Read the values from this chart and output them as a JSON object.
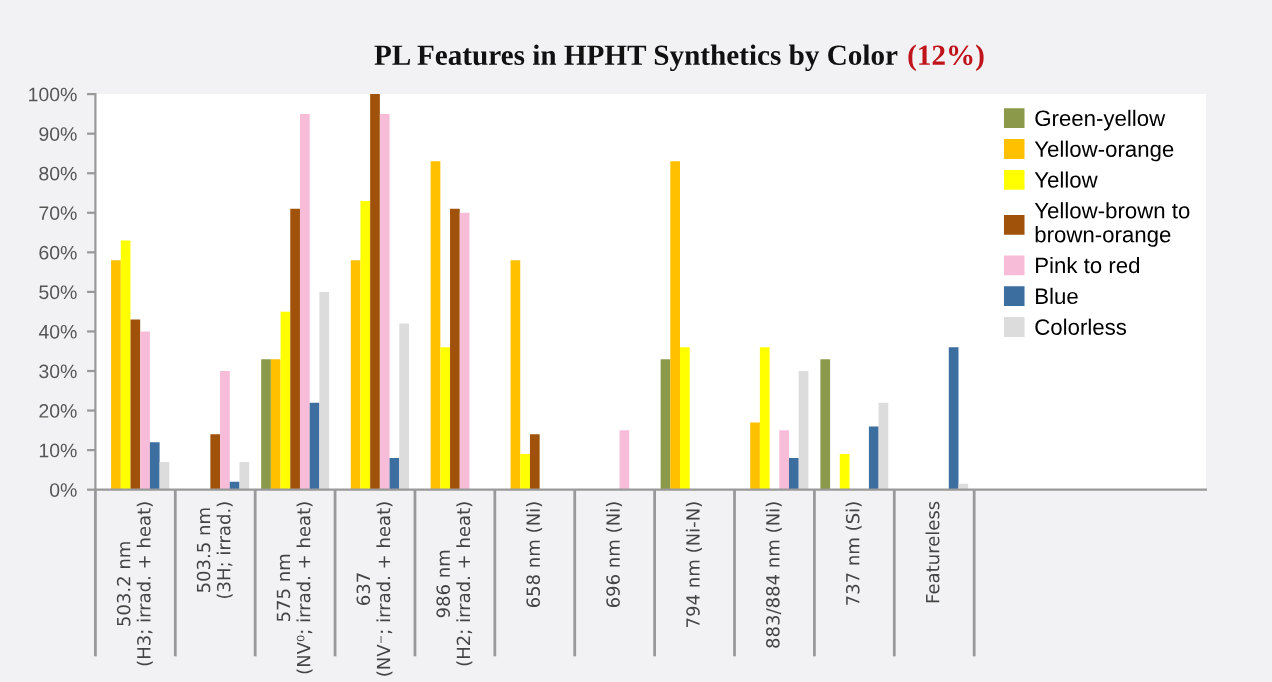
{
  "chart_data": {
    "type": "bar",
    "title": "PL Features in HPHT Synthetics by Color",
    "annotations": [
      "(12%)"
    ],
    "categories": [
      "503.2 nm\n(H3; irrad. + heat)",
      "503.5 nm\n(3H; irrad.)",
      "575 nm\n(NV⁰; irrad. + heat)",
      "637\n(NV⁻; irrad. + heat)",
      "986 nm\n(H2; irrad. + heat)",
      "658 nm (Ni)",
      "696 nm (Ni)",
      "794 nm (Ni-N)",
      "883/884 nm (Ni)",
      "737 nm (Si)",
      "Featureless"
    ],
    "series": [
      {
        "name": "Green-yellow",
        "color": "#8a9a4a",
        "values": [
          null,
          null,
          33,
          null,
          null,
          null,
          null,
          33,
          null,
          33,
          null
        ]
      },
      {
        "name": "Yellow-orange",
        "color": "#ffc000",
        "values": [
          58,
          null,
          33,
          58,
          83,
          58,
          null,
          83,
          17,
          null,
          null
        ]
      },
      {
        "name": "Yellow",
        "color": "#ffff00",
        "values": [
          63,
          null,
          45,
          73,
          36,
          9,
          null,
          36,
          36,
          9,
          null
        ]
      },
      {
        "name": "Yellow-brown to\nbrown-orange",
        "color": "#a0520a",
        "values": [
          43,
          14,
          71,
          100,
          71,
          14,
          null,
          null,
          null,
          null,
          null
        ]
      },
      {
        "name": "Pink to red",
        "color": "#f7bcd8",
        "values": [
          40,
          30,
          95,
          95,
          70,
          null,
          15,
          null,
          15,
          null,
          null
        ]
      },
      {
        "name": "Blue",
        "color": "#3c6ea0",
        "values": [
          12,
          2,
          22,
          8,
          null,
          null,
          null,
          null,
          8,
          16,
          36
        ]
      },
      {
        "name": "Colorless",
        "color": "#dcdcdc",
        "values": [
          7,
          7,
          50,
          42,
          null,
          null,
          null,
          null,
          30,
          22,
          1.5
        ]
      }
    ],
    "ylim": [
      0,
      100
    ],
    "yticks": [
      {
        "value": 0,
        "label": "0%"
      },
      {
        "value": 10,
        "label": "10%"
      },
      {
        "value": 20,
        "label": "20%"
      },
      {
        "value": 30,
        "label": "30%"
      },
      {
        "value": 40,
        "label": "40%"
      },
      {
        "value": 50,
        "label": "50%"
      },
      {
        "value": 60,
        "label": "60%"
      },
      {
        "value": 70,
        "label": "70%"
      },
      {
        "value": 80,
        "label": "80%"
      },
      {
        "value": 90,
        "label": "90%"
      },
      {
        "value": 100,
        "label": "100%"
      }
    ],
    "grid": false,
    "legend": "top right"
  }
}
